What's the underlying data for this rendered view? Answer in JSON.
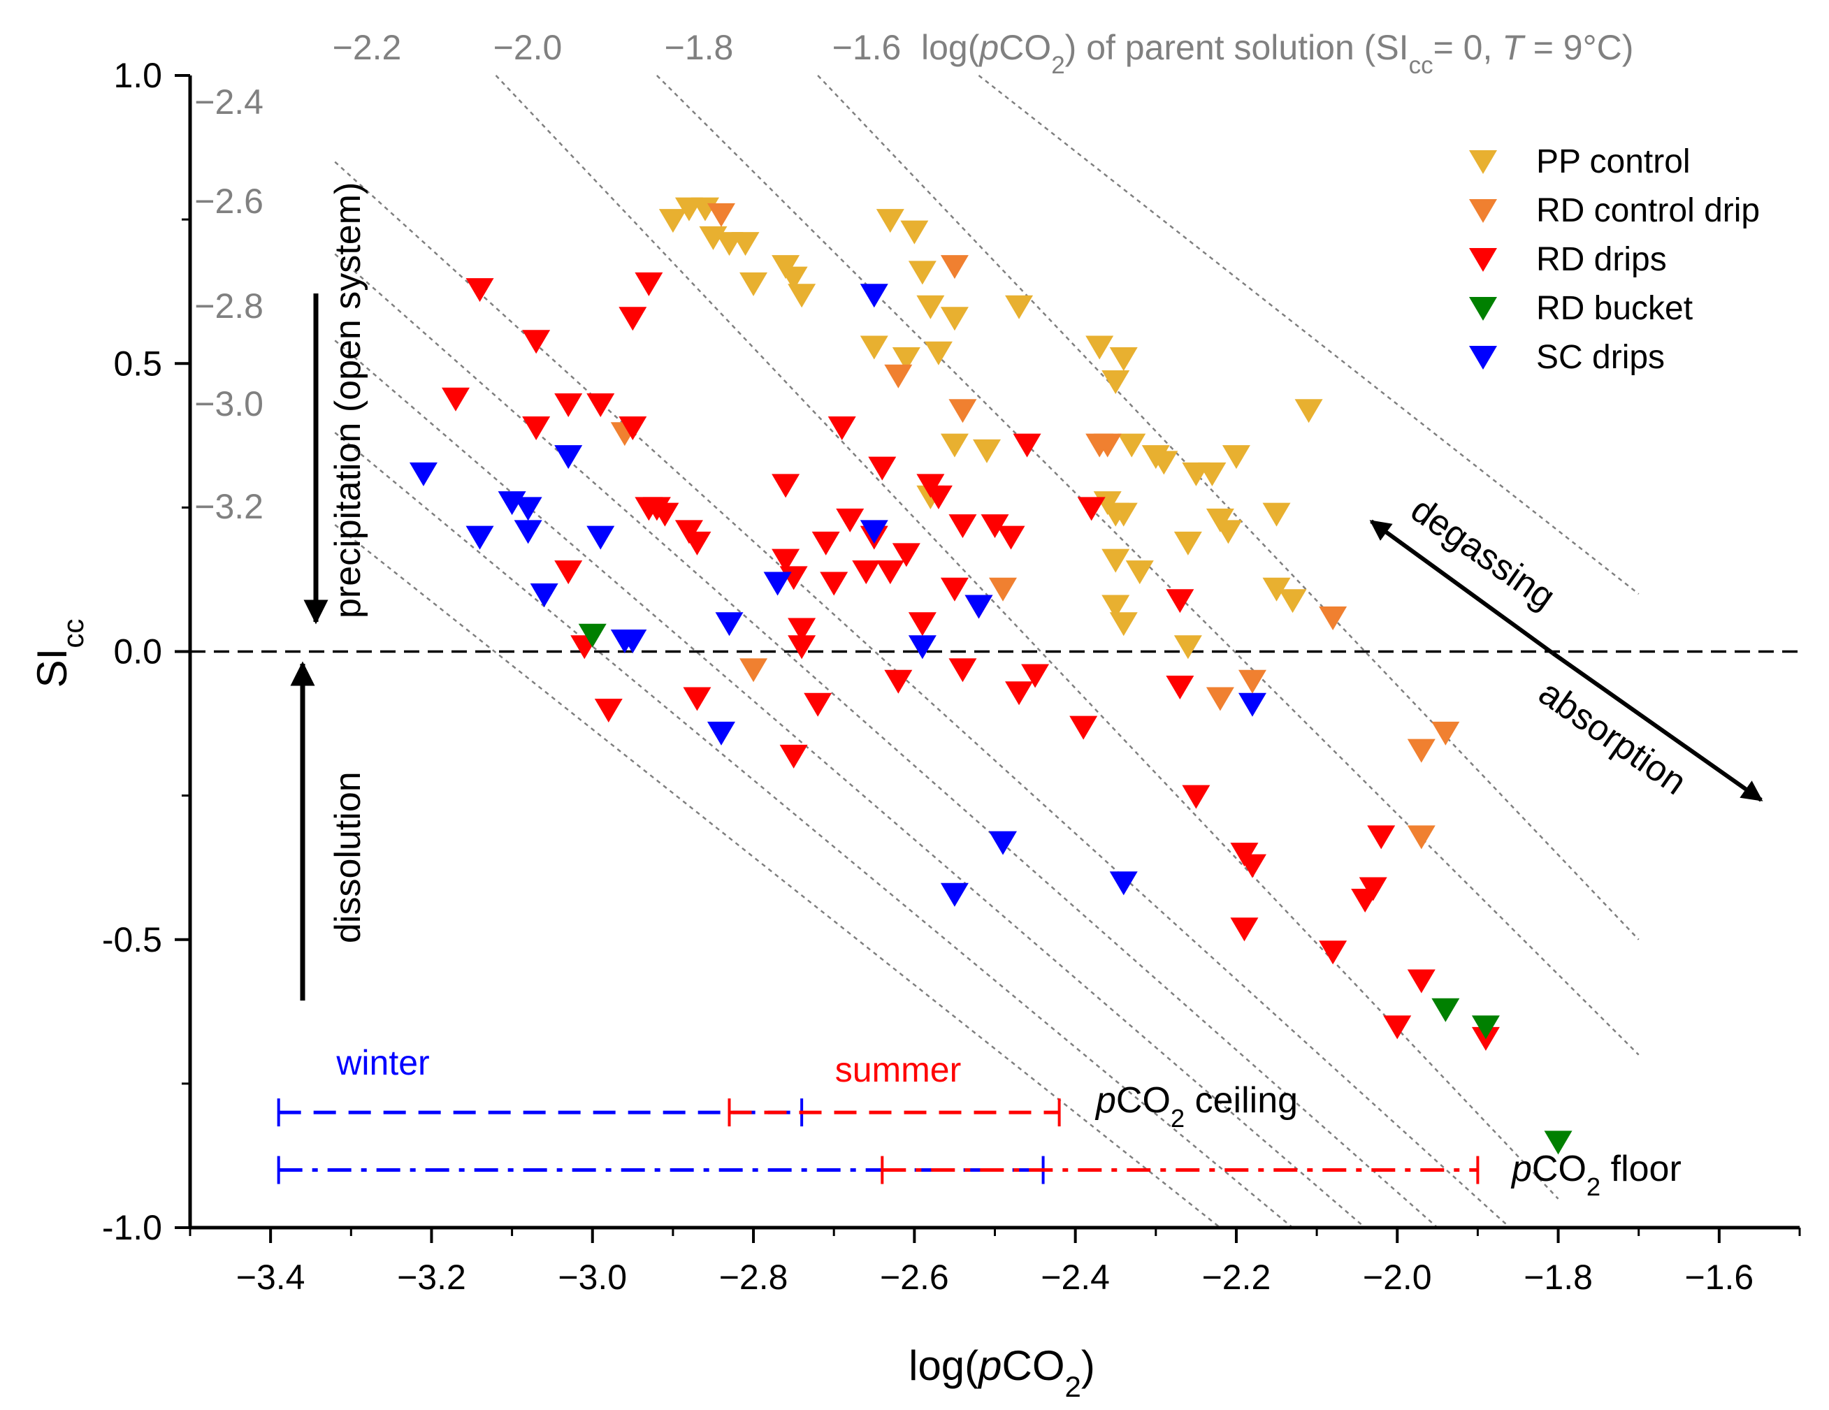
{
  "chart_data": {
    "type": "scatter",
    "xlabel_parts": [
      "log(",
      "p",
      "CO",
      "2",
      ")"
    ],
    "ylabel_parts": [
      "SI",
      "cc"
    ],
    "xlim": [
      -3.5,
      -1.5
    ],
    "ylim": [
      -1.0,
      1.0
    ],
    "xticks": [
      -3.4,
      -3.2,
      -3.0,
      -2.8,
      -2.6,
      -2.4,
      -2.2,
      -2.0,
      -1.8,
      -1.6
    ],
    "xtick_labels": [
      "−3.4",
      "−3.2",
      "−3.0",
      "−2.8",
      "−2.6",
      "−2.4",
      "−2.2",
      "−2.0",
      "−1.8",
      "−1.6"
    ],
    "yticks": [
      1.0,
      0.5,
      0.0,
      -0.5,
      -1.0
    ],
    "ytick_labels": [
      "1.0",
      "0.5",
      "0.0",
      "-0.5",
      "-1.0"
    ],
    "zero_line": true,
    "legend_position": "top-right",
    "isolines_title_parts": [
      "log(",
      "p",
      "CO",
      "2",
      ") of parent solution (SI",
      "cc",
      "= 0, ",
      "T",
      " = 9°C)"
    ],
    "isolines": [
      {
        "value": -1.6,
        "label": "−1.6",
        "start": [
          -2.52,
          1.0
        ],
        "end": [
          -1.7,
          0.1
        ]
      },
      {
        "value": -1.8,
        "label": "−1.8",
        "start": [
          -2.72,
          1.0
        ],
        "end": [
          -1.7,
          -0.5
        ]
      },
      {
        "value": -2.0,
        "label": "−2.0",
        "start": [
          -2.92,
          1.0
        ],
        "end": [
          -1.7,
          -0.7
        ]
      },
      {
        "value": -2.2,
        "label": "−2.2",
        "start": [
          -3.12,
          1.0
        ],
        "end": [
          -1.8,
          -0.95
        ]
      },
      {
        "value": -2.4,
        "label": "−2.4",
        "start": [
          -3.32,
          0.85
        ],
        "end": [
          -1.86,
          -1.0
        ]
      },
      {
        "value": -2.6,
        "label": "−2.6",
        "start": [
          -3.32,
          0.69
        ],
        "end": [
          -1.95,
          -1.0
        ]
      },
      {
        "value": -2.8,
        "label": "−2.8",
        "start": [
          -3.32,
          0.54
        ],
        "end": [
          -2.04,
          -1.0
        ]
      },
      {
        "value": -3.0,
        "label": "−3.0",
        "start": [
          -3.32,
          0.38
        ],
        "end": [
          -2.13,
          -1.0
        ]
      },
      {
        "value": -3.2,
        "label": "−3.2",
        "start": [
          -3.32,
          0.22
        ],
        "end": [
          -2.22,
          -1.0
        ]
      }
    ],
    "series": [
      {
        "name": "PP control",
        "color": "#e8b030",
        "points": [
          [
            -2.9,
            0.75
          ],
          [
            -2.88,
            0.77
          ],
          [
            -2.86,
            0.77
          ],
          [
            -2.85,
            0.72
          ],
          [
            -2.83,
            0.71
          ],
          [
            -2.81,
            0.71
          ],
          [
            -2.8,
            0.64
          ],
          [
            -2.76,
            0.67
          ],
          [
            -2.75,
            0.65
          ],
          [
            -2.74,
            0.62
          ],
          [
            -2.63,
            0.75
          ],
          [
            -2.6,
            0.73
          ],
          [
            -2.59,
            0.66
          ],
          [
            -2.58,
            0.6
          ],
          [
            -2.57,
            0.52
          ],
          [
            -2.55,
            0.58
          ],
          [
            -2.61,
            0.51
          ],
          [
            -2.65,
            0.53
          ],
          [
            -2.47,
            0.6
          ],
          [
            -2.37,
            0.53
          ],
          [
            -2.34,
            0.51
          ],
          [
            -2.35,
            0.47
          ],
          [
            -2.55,
            0.36
          ],
          [
            -2.51,
            0.35
          ],
          [
            -2.58,
            0.27
          ],
          [
            -2.33,
            0.36
          ],
          [
            -2.3,
            0.34
          ],
          [
            -2.29,
            0.33
          ],
          [
            -2.25,
            0.31
          ],
          [
            -2.23,
            0.31
          ],
          [
            -2.2,
            0.34
          ],
          [
            -2.11,
            0.42
          ],
          [
            -2.15,
            0.24
          ],
          [
            -2.22,
            0.23
          ],
          [
            -2.21,
            0.21
          ],
          [
            -2.36,
            0.26
          ],
          [
            -2.35,
            0.24
          ],
          [
            -2.34,
            0.24
          ],
          [
            -2.35,
            0.16
          ],
          [
            -2.32,
            0.14
          ],
          [
            -2.26,
            0.19
          ],
          [
            -2.15,
            0.11
          ],
          [
            -2.13,
            0.09
          ],
          [
            -2.35,
            0.08
          ],
          [
            -2.34,
            0.05
          ],
          [
            -2.26,
            0.01
          ]
        ]
      },
      {
        "name": "RD control drip",
        "color": "#f08030",
        "points": [
          [
            -2.84,
            0.76
          ],
          [
            -2.55,
            0.67
          ],
          [
            -2.62,
            0.48
          ],
          [
            -2.54,
            0.42
          ],
          [
            -2.96,
            0.38
          ],
          [
            -2.37,
            0.36
          ],
          [
            -2.36,
            0.36
          ],
          [
            -2.49,
            0.11
          ],
          [
            -2.8,
            -0.03
          ],
          [
            -2.22,
            -0.08
          ],
          [
            -2.18,
            -0.05
          ],
          [
            -2.08,
            0.06
          ],
          [
            -1.97,
            -0.17
          ],
          [
            -1.94,
            -0.14
          ],
          [
            -1.97,
            -0.32
          ]
        ]
      },
      {
        "name": "RD drips",
        "color": "#ff0000",
        "points": [
          [
            -3.14,
            0.63
          ],
          [
            -2.93,
            0.64
          ],
          [
            -2.95,
            0.58
          ],
          [
            -3.07,
            0.54
          ],
          [
            -3.17,
            0.44
          ],
          [
            -3.03,
            0.43
          ],
          [
            -2.99,
            0.43
          ],
          [
            -2.95,
            0.39
          ],
          [
            -3.07,
            0.39
          ],
          [
            -2.69,
            0.39
          ],
          [
            -2.64,
            0.32
          ],
          [
            -2.58,
            0.29
          ],
          [
            -2.57,
            0.27
          ],
          [
            -2.76,
            0.29
          ],
          [
            -2.93,
            0.25
          ],
          [
            -2.92,
            0.25
          ],
          [
            -2.91,
            0.24
          ],
          [
            -2.88,
            0.21
          ],
          [
            -2.87,
            0.19
          ],
          [
            -2.68,
            0.23
          ],
          [
            -2.54,
            0.22
          ],
          [
            -2.5,
            0.22
          ],
          [
            -2.48,
            0.2
          ],
          [
            -2.71,
            0.19
          ],
          [
            -2.65,
            0.2
          ],
          [
            -2.61,
            0.17
          ],
          [
            -2.63,
            0.14
          ],
          [
            -2.66,
            0.14
          ],
          [
            -2.7,
            0.12
          ],
          [
            -2.76,
            0.16
          ],
          [
            -2.75,
            0.13
          ],
          [
            -2.59,
            0.05
          ],
          [
            -2.55,
            0.11
          ],
          [
            -2.52,
            0.08
          ],
          [
            -2.74,
            0.04
          ],
          [
            -2.74,
            0.01
          ],
          [
            -2.46,
            0.36
          ],
          [
            -2.38,
            0.25
          ],
          [
            -3.03,
            0.14
          ],
          [
            -3.01,
            0.01
          ],
          [
            -2.62,
            -0.05
          ],
          [
            -2.54,
            -0.03
          ],
          [
            -2.45,
            -0.04
          ],
          [
            -2.47,
            -0.07
          ],
          [
            -2.72,
            -0.09
          ],
          [
            -2.87,
            -0.08
          ],
          [
            -2.98,
            -0.1
          ],
          [
            -2.75,
            -0.18
          ],
          [
            -2.39,
            -0.13
          ],
          [
            -2.27,
            -0.06
          ],
          [
            -2.27,
            0.09
          ],
          [
            -2.25,
            -0.25
          ],
          [
            -2.19,
            -0.35
          ],
          [
            -2.18,
            -0.37
          ],
          [
            -2.19,
            -0.48
          ],
          [
            -2.08,
            -0.52
          ],
          [
            -2.04,
            -0.43
          ],
          [
            -2.03,
            -0.41
          ],
          [
            -2.02,
            -0.32
          ],
          [
            -1.97,
            -0.57
          ],
          [
            -2.0,
            -0.65
          ],
          [
            -1.89,
            -0.67
          ]
        ]
      },
      {
        "name": "RD bucket",
        "color": "#008000",
        "points": [
          [
            -3.0,
            0.03
          ],
          [
            -1.94,
            -0.62
          ],
          [
            -1.89,
            -0.65
          ],
          [
            -1.8,
            -0.85
          ]
        ]
      },
      {
        "name": "SC drips",
        "color": "#0000ff",
        "points": [
          [
            -3.21,
            0.31
          ],
          [
            -3.1,
            0.26
          ],
          [
            -3.08,
            0.25
          ],
          [
            -3.08,
            0.21
          ],
          [
            -3.14,
            0.2
          ],
          [
            -3.03,
            0.34
          ],
          [
            -2.99,
            0.2
          ],
          [
            -3.06,
            0.1
          ],
          [
            -2.96,
            0.02
          ],
          [
            -2.95,
            0.02
          ],
          [
            -2.83,
            0.05
          ],
          [
            -2.77,
            0.12
          ],
          [
            -2.65,
            0.21
          ],
          [
            -2.65,
            0.62
          ],
          [
            -2.59,
            0.01
          ],
          [
            -2.52,
            0.08
          ],
          [
            -2.84,
            -0.14
          ],
          [
            -2.55,
            -0.42
          ],
          [
            -2.49,
            -0.33
          ],
          [
            -2.34,
            -0.4
          ],
          [
            -2.18,
            -0.09
          ]
        ]
      }
    ],
    "annotations": {
      "precipitation": "precipitation (open system)",
      "dissolution": "dissolution",
      "degassing": "degassing",
      "absorption": "absorption"
    },
    "ranges": {
      "winter_label": "winter",
      "summer_label": "summer",
      "winter_color": "#0000ff",
      "summer_color": "#ff0000",
      "ceiling_label_parts": [
        "p",
        "CO",
        "2",
        " ceiling"
      ],
      "floor_label_parts": [
        "p",
        "CO",
        "2",
        " floor"
      ],
      "ceiling_y": -0.8,
      "floor_y": -0.9,
      "winter_ceiling": [
        -3.39,
        -2.74
      ],
      "summer_ceiling": [
        -2.83,
        -2.42
      ],
      "winter_floor": [
        -3.39,
        -2.44
      ],
      "summer_floor": [
        -2.64,
        -1.9
      ]
    }
  }
}
